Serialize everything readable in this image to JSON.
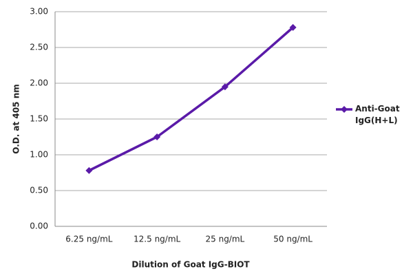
{
  "chart_data": {
    "type": "line",
    "x_label": "Dilution of Goat IgG-BIOT",
    "y_label": "O.D. at 405 nm",
    "categories": [
      "6.25 ng/mL",
      "12.5 ng/mL",
      "25 ng/mL",
      "50 ng/mL"
    ],
    "series": [
      {
        "name": "Anti-Goat IgG(H+L)",
        "color": "#5a1aa8",
        "values": [
          0.78,
          1.25,
          1.95,
          2.78
        ]
      }
    ],
    "ylim": [
      0,
      3
    ],
    "yticks": [
      {
        "value": 0,
        "label": "0.00"
      },
      {
        "value": 0.5,
        "label": "0.50"
      },
      {
        "value": 1,
        "label": "1.00"
      },
      {
        "value": 1.5,
        "label": "1.50"
      },
      {
        "value": 2,
        "label": "2.00"
      },
      {
        "value": 2.5,
        "label": "2.50"
      },
      {
        "value": 3,
        "label": "3.00"
      }
    ],
    "grid": true,
    "legend": "right"
  }
}
